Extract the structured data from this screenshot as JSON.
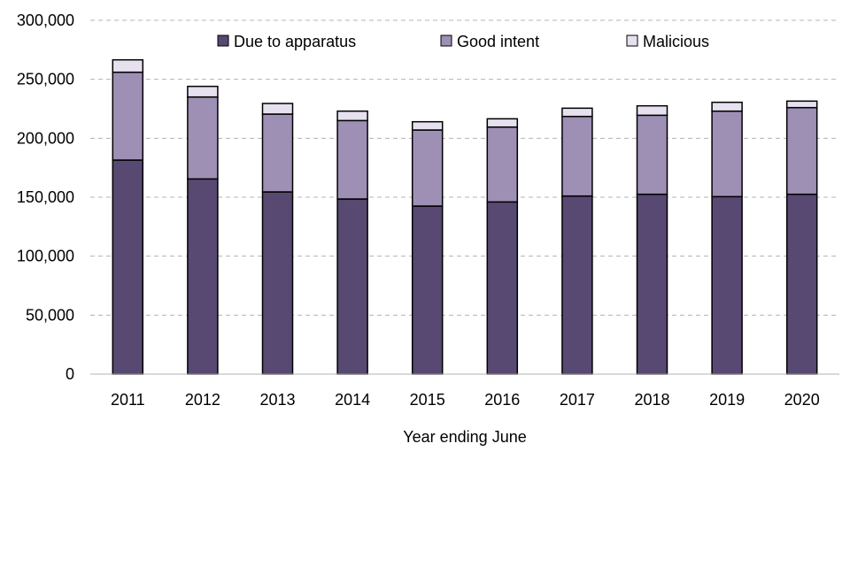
{
  "chart_data": {
    "type": "bar",
    "stacked": true,
    "categories": [
      "2011",
      "2012",
      "2013",
      "2014",
      "2015",
      "2016",
      "2017",
      "2018",
      "2019",
      "2020"
    ],
    "series": [
      {
        "name": "Due to apparatus",
        "color": "#574971",
        "values": [
          181500,
          165500,
          154500,
          148500,
          142500,
          146000,
          151000,
          152500,
          150500,
          152500
        ]
      },
      {
        "name": "Good intent",
        "color": "#9e8fb5",
        "values": [
          74500,
          69500,
          66000,
          66500,
          64500,
          63500,
          67500,
          67000,
          72500,
          73500
        ]
      },
      {
        "name": "Malicious",
        "color": "#e6e0ef",
        "values": [
          10500,
          9000,
          9000,
          8000,
          7000,
          7000,
          7000,
          8000,
          7500,
          5500
        ]
      }
    ],
    "xlabel": "Year ending June",
    "ylabel": "",
    "ylim": [
      0,
      300000
    ],
    "yticks": [
      0,
      50000,
      100000,
      150000,
      200000,
      250000,
      300000
    ],
    "ytick_labels": [
      "0",
      "50,000",
      "100,000",
      "150,000",
      "200,000",
      "250,000",
      "300,000"
    ],
    "grid": "horizontal-dashed",
    "legend_position": "top"
  }
}
